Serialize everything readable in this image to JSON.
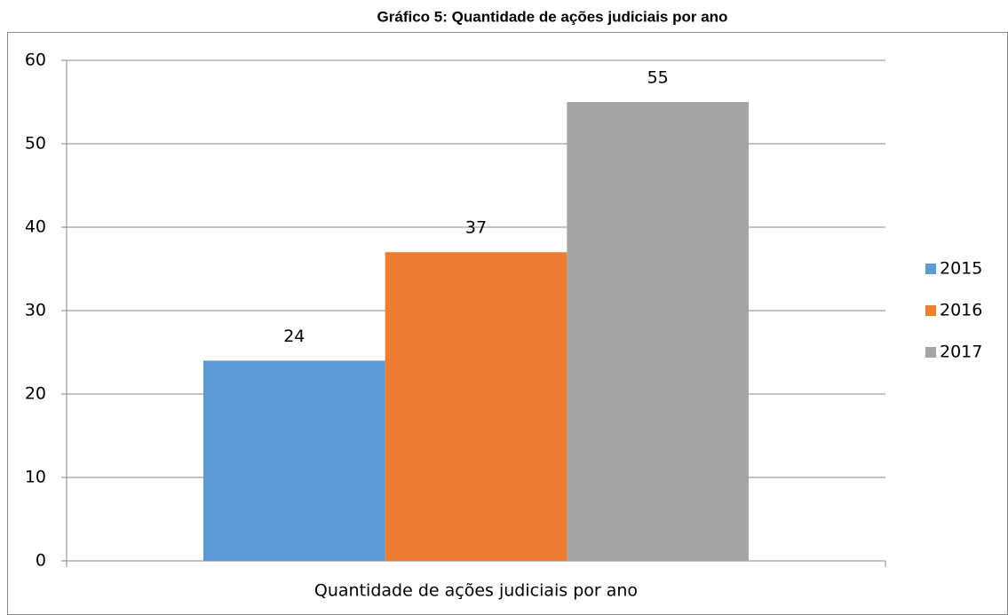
{
  "chart_data": {
    "type": "bar",
    "title": "Gráfico 5: Quantidade de ações judiciais por ano",
    "categories": [
      "Quantidade de ações judiciais por ano"
    ],
    "series": [
      {
        "name": "2015",
        "color": "#5b9bd5",
        "values": [
          24
        ]
      },
      {
        "name": "2016",
        "color": "#ed7d31",
        "values": [
          37
        ]
      },
      {
        "name": "2017",
        "color": "#a5a5a5",
        "values": [
          55
        ]
      }
    ],
    "ylim": [
      0,
      60
    ],
    "yticks": [
      0,
      10,
      20,
      30,
      40,
      50,
      60
    ],
    "grid": true,
    "legend": "right"
  }
}
